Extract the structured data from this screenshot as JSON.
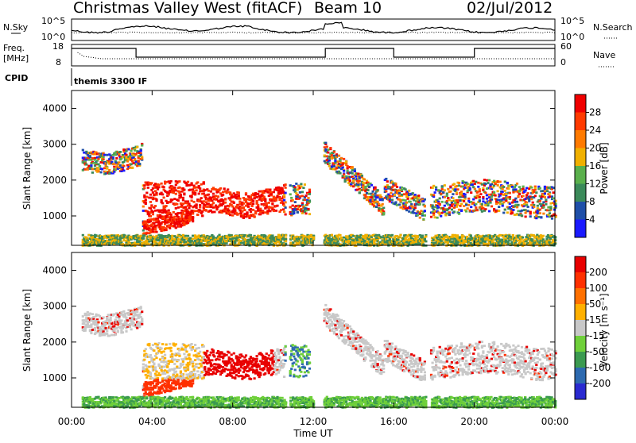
{
  "header": {
    "title": "Christmas Valley West (fitACF)",
    "beam": "Beam 10",
    "date": "02/Jul/2012"
  },
  "panels": {
    "nsky_label": "N.Sky",
    "nsky_ticks": [
      "10^5",
      "10^0"
    ],
    "nsearch_label": "N.Search",
    "nsearch_ticks": [
      "10^5",
      "10^0"
    ],
    "freq_label_1": "Freq.",
    "freq_label_2": "[MHz]",
    "freq_ticks": [
      "18",
      "8"
    ],
    "nave_label": "Nave",
    "nave_ticks": [
      "60",
      "0"
    ],
    "cpid_label": "CPID",
    "cpid_value": "themis 3300 IF"
  },
  "chart_data": [
    {
      "type": "heatmap",
      "name": "power",
      "ylabel": "Slant Range [km]",
      "yticks": [
        "4000",
        "3000",
        "2000",
        "1000"
      ],
      "colorbar_label": "Power [dB]",
      "colorbar_ticks": [
        "28",
        "24",
        "20",
        "16",
        "12",
        "8",
        "4"
      ],
      "colors": [
        "#1a1aff",
        "#1f4fa8",
        "#3b8a5a",
        "#5ab04c",
        "#f0b000",
        "#ff7a00",
        "#ff3a00",
        "#f00000"
      ]
    },
    {
      "type": "heatmap",
      "name": "velocity",
      "ylabel": "Slant Range [km]",
      "yticks": [
        "4000",
        "3000",
        "2000",
        "1000"
      ],
      "colorbar_label": "Velocity [m s⁻¹]",
      "colorbar_ticks": [
        "200",
        "100",
        "50",
        "15",
        "-15",
        "-50",
        "-100",
        "-200"
      ],
      "colors": [
        "#2a2ad0",
        "#2d6ab0",
        "#3b9a50",
        "#6fd03a",
        "#c8c8c8",
        "#ffb000",
        "#ff7000",
        "#ff3000",
        "#e80000"
      ]
    }
  ],
  "xaxis": {
    "label": "Time UT",
    "ticks": [
      "00:00",
      "04:00",
      "08:00",
      "12:00",
      "16:00",
      "20:00",
      "00:00"
    ]
  }
}
